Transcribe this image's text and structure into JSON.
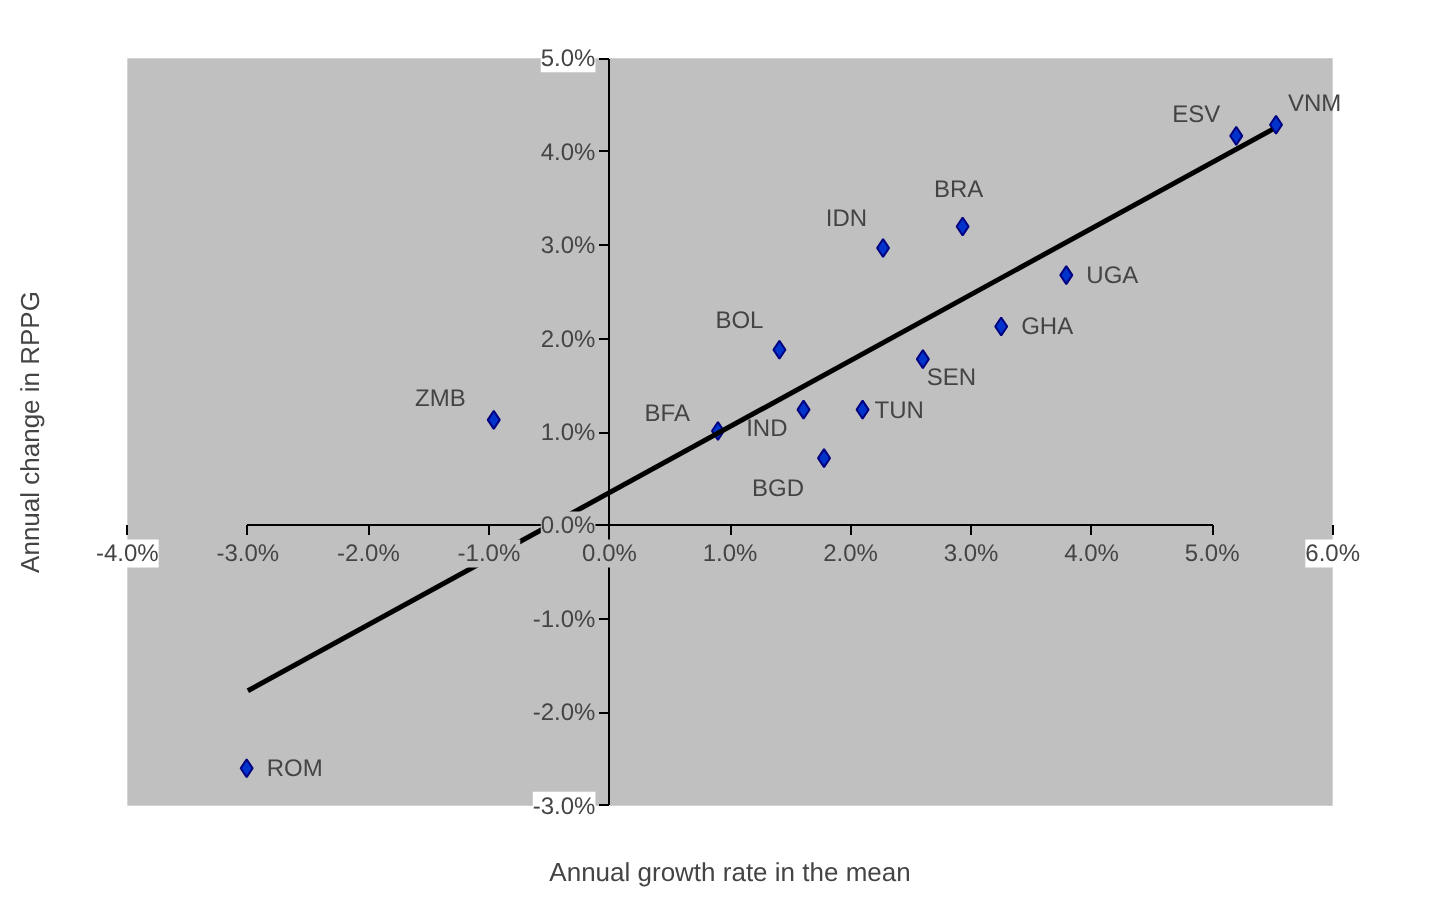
{
  "chart_data": {
    "type": "scatter",
    "xlabel": "Annual growth rate in the mean",
    "ylabel": "Annual change in RPPG",
    "series": [
      {
        "type": "scatter",
        "color": "#0033cc",
        "marker": "diamond",
        "x": [
          5.53,
          5.2,
          2.93,
          2.27,
          3.79,
          3.25,
          1.41,
          2.6,
          1.61,
          2.1,
          0.9,
          1.78,
          -0.96,
          -3.01
        ],
        "values": [
          4.29,
          4.17,
          3.2,
          2.97,
          2.68,
          2.13,
          1.88,
          1.78,
          1.24,
          1.24,
          1.01,
          0.72,
          1.13,
          -2.6
        ]
      },
      {
        "type": "line",
        "color": "#000000",
        "x": [
          -3.0,
          5.5
        ],
        "values": [
          -1.77,
          4.24
        ]
      }
    ],
    "annotations": [
      {
        "text": "VNM",
        "x": 5.53,
        "y": 4.29
      },
      {
        "text": "ESV",
        "x": 5.2,
        "y": 4.17
      },
      {
        "text": "BRA",
        "x": 2.93,
        "y": 3.2
      },
      {
        "text": "IDN",
        "x": 2.27,
        "y": 2.97
      },
      {
        "text": "UGA",
        "x": 3.79,
        "y": 2.68
      },
      {
        "text": "GHA",
        "x": 3.25,
        "y": 2.13
      },
      {
        "text": "BOL",
        "x": 1.41,
        "y": 1.88
      },
      {
        "text": "SEN",
        "x": 2.6,
        "y": 1.78
      },
      {
        "text": "IND",
        "x": 1.61,
        "y": 1.24
      },
      {
        "text": "TUN",
        "x": 2.1,
        "y": 1.24
      },
      {
        "text": "BFA",
        "x": 0.9,
        "y": 1.01
      },
      {
        "text": "BGD",
        "x": 1.78,
        "y": 0.72
      },
      {
        "text": "ZMB",
        "x": -0.96,
        "y": 1.13
      },
      {
        "text": "ROM",
        "x": -3.01,
        "y": -2.6
      }
    ],
    "xlim": [
      -4,
      6
    ],
    "ylim": [
      -3,
      5
    ],
    "xticks": [
      {
        "value": -4,
        "label": "-4.0%"
      },
      {
        "value": -3,
        "label": "-3.0%"
      },
      {
        "value": -2,
        "label": "-2.0%"
      },
      {
        "value": -1,
        "label": "-1.0%"
      },
      {
        "value": 0,
        "label": "0.0%"
      },
      {
        "value": 1,
        "label": "1.0%"
      },
      {
        "value": 2,
        "label": "2.0%"
      },
      {
        "value": 3,
        "label": "3.0%"
      },
      {
        "value": 4,
        "label": "4.0%"
      },
      {
        "value": 5,
        "label": "5.0%"
      },
      {
        "value": 6,
        "label": "6.0%"
      }
    ],
    "yticks": [
      {
        "value": -3,
        "label": "-3.0%"
      },
      {
        "value": -2,
        "label": "-2.0%"
      },
      {
        "value": -1,
        "label": "-1.0%"
      },
      {
        "value": 0,
        "label": "0.0%"
      },
      {
        "value": 1,
        "label": "1.0%"
      },
      {
        "value": 2,
        "label": "2.0%"
      },
      {
        "value": 3,
        "label": "3.0%"
      },
      {
        "value": 4,
        "label": "4.0%"
      },
      {
        "value": 5,
        "label": "5.0%"
      }
    ],
    "grid": false
  }
}
